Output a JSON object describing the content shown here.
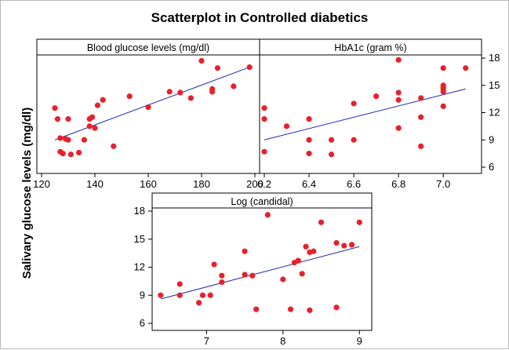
{
  "title": "Scatterplot in Controlled  diabetics",
  "ylabel": "Salivary glucose levels (mg/dl)",
  "colors": {
    "point": "#e8202a",
    "line": "#1d2ea8",
    "strip": "#ffffff",
    "frame": "#000000"
  },
  "chart_data": [
    {
      "type": "scatter",
      "panel_title": "Blood glucose levels (mg/dl)",
      "xlim": [
        120,
        200
      ],
      "ylim": [
        6,
        18
      ],
      "x_ticks": [
        120,
        140,
        160,
        180,
        200
      ],
      "y_ticks": [
        6,
        9,
        12,
        15,
        18
      ],
      "x_tick_labels": [
        "120",
        "140",
        "160",
        "180",
        "200"
      ],
      "y_tick_labels": [],
      "trendline": [
        [
          125,
          9.0
        ],
        [
          198,
          17.0
        ]
      ],
      "points": [
        [
          125,
          12.5
        ],
        [
          126,
          11.3
        ],
        [
          127,
          9.2
        ],
        [
          127,
          7.7
        ],
        [
          128,
          7.5
        ],
        [
          129,
          9.1
        ],
        [
          130,
          9.0
        ],
        [
          130,
          11.3
        ],
        [
          131,
          7.4
        ],
        [
          134,
          7.6
        ],
        [
          136,
          9.0
        ],
        [
          138,
          10.5
        ],
        [
          138,
          11.3
        ],
        [
          139,
          11.5
        ],
        [
          140,
          10.3
        ],
        [
          141,
          12.8
        ],
        [
          143,
          13.4
        ],
        [
          147,
          8.3
        ],
        [
          153,
          13.8
        ],
        [
          160,
          12.6
        ],
        [
          168,
          14.3
        ],
        [
          172,
          14.2
        ],
        [
          176,
          13.6
        ],
        [
          180,
          17.7
        ],
        [
          184,
          14.3
        ],
        [
          184,
          14.6
        ],
        [
          186,
          16.9
        ],
        [
          192,
          14.9
        ],
        [
          198,
          17.0
        ]
      ]
    },
    {
      "type": "scatter",
      "panel_title": "HbA1c (gram %)",
      "xlim": [
        6.2,
        7.15
      ],
      "ylim": [
        6,
        18
      ],
      "x_ticks": [
        6.2,
        6.4,
        6.6,
        6.8,
        7.0
      ],
      "y_ticks": [
        6,
        9,
        12,
        15,
        18
      ],
      "x_tick_labels": [
        "6.2",
        "6.4",
        "6.6",
        "6.8",
        "7.0"
      ],
      "y_tick_labels": [
        "6",
        "9",
        "12",
        "15",
        "18"
      ],
      "trendline": [
        [
          6.2,
          9.0
        ],
        [
          7.1,
          14.6
        ]
      ],
      "points": [
        [
          6.2,
          12.5
        ],
        [
          6.2,
          11.3
        ],
        [
          6.2,
          7.7
        ],
        [
          6.3,
          10.5
        ],
        [
          6.4,
          11.3
        ],
        [
          6.4,
          9.0
        ],
        [
          6.4,
          7.5
        ],
        [
          6.5,
          9.0
        ],
        [
          6.5,
          7.4
        ],
        [
          6.6,
          13.0
        ],
        [
          6.6,
          9.0
        ],
        [
          6.7,
          13.8
        ],
        [
          6.8,
          17.8
        ],
        [
          6.8,
          14.2
        ],
        [
          6.8,
          13.4
        ],
        [
          6.8,
          10.3
        ],
        [
          6.9,
          13.6
        ],
        [
          6.9,
          11.5
        ],
        [
          6.9,
          8.3
        ],
        [
          7.0,
          16.9
        ],
        [
          7.0,
          15.0
        ],
        [
          7.0,
          14.8
        ],
        [
          7.0,
          14.6
        ],
        [
          7.0,
          14.3
        ],
        [
          7.0,
          12.7
        ],
        [
          7.1,
          16.9
        ]
      ]
    },
    {
      "type": "scatter",
      "panel_title": "Log (candidal)",
      "xlim": [
        6.35,
        9.1
      ],
      "ylim": [
        6,
        18
      ],
      "x_ticks": [
        7,
        8,
        9
      ],
      "y_ticks": [
        6,
        9,
        12,
        15,
        18
      ],
      "x_tick_labels": [
        "7",
        "8",
        "9"
      ],
      "y_tick_labels": [
        "6",
        "9",
        "12",
        "15",
        "18"
      ],
      "trendline": [
        [
          6.4,
          8.6
        ],
        [
          9.0,
          14.2
        ]
      ],
      "points": [
        [
          6.4,
          9.0
        ],
        [
          6.65,
          9.0
        ],
        [
          6.65,
          10.2
        ],
        [
          6.9,
          8.2
        ],
        [
          6.95,
          9.0
        ],
        [
          7.05,
          9.0
        ],
        [
          7.1,
          12.3
        ],
        [
          7.2,
          11.1
        ],
        [
          7.2,
          10.4
        ],
        [
          7.5,
          13.7
        ],
        [
          7.5,
          11.2
        ],
        [
          7.6,
          11.1
        ],
        [
          7.65,
          7.5
        ],
        [
          7.8,
          17.6
        ],
        [
          8.0,
          10.7
        ],
        [
          8.1,
          7.5
        ],
        [
          8.15,
          12.5
        ],
        [
          8.2,
          12.7
        ],
        [
          8.25,
          11.3
        ],
        [
          8.3,
          14.2
        ],
        [
          8.35,
          13.6
        ],
        [
          8.35,
          7.4
        ],
        [
          8.4,
          13.7
        ],
        [
          8.5,
          16.8
        ],
        [
          8.7,
          14.6
        ],
        [
          8.7,
          7.7
        ],
        [
          8.8,
          14.3
        ],
        [
          8.9,
          14.4
        ],
        [
          9.0,
          16.8
        ]
      ]
    }
  ]
}
